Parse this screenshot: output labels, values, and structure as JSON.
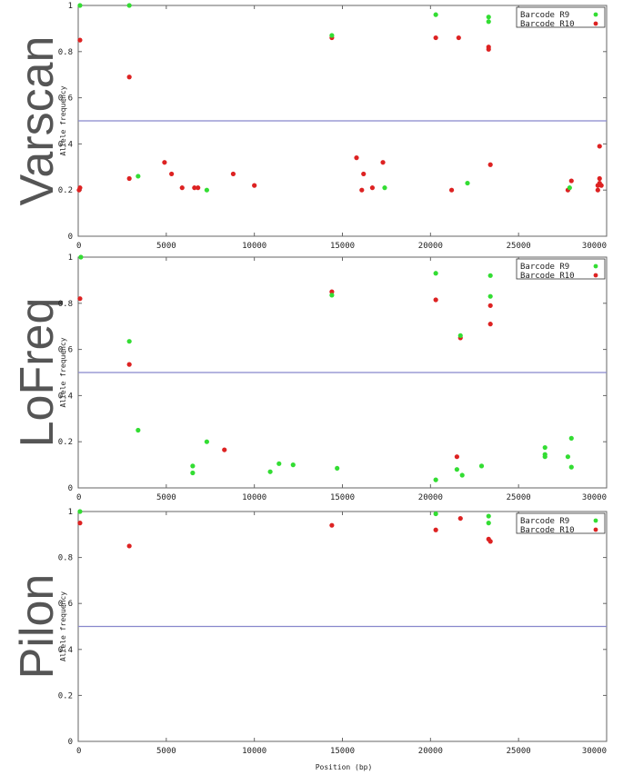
{
  "figure": {
    "x_axis_label": "Position (bp)"
  },
  "colors": {
    "r9": "#33dd33",
    "r10": "#dd2222",
    "threshold": "#8888cc",
    "frame": "#666666"
  },
  "chart_data": [
    {
      "type": "scatter",
      "side_title": "Varscan",
      "ylabel": "Allele frequency",
      "xlabel": "",
      "xlim": [
        0,
        30000
      ],
      "ylim": [
        0,
        1
      ],
      "x_ticks": [
        "0",
        "5000",
        "10000",
        "15000",
        "20000",
        "25000",
        "30000"
      ],
      "y_ticks": [
        "0",
        "0.2",
        "0.4",
        "0.6",
        "0.8",
        "1"
      ],
      "threshold": 0.5,
      "legend_placement": "top-right",
      "series": [
        {
          "name": "Barcode R9",
          "color": "#33dd33",
          "points": [
            [
              100,
              1.0
            ],
            [
              2900,
              1.0
            ],
            [
              3400,
              0.26
            ],
            [
              7300,
              0.2
            ],
            [
              14400,
              0.87
            ],
            [
              17400,
              0.21
            ],
            [
              20300,
              0.96
            ],
            [
              22100,
              0.23
            ],
            [
              23300,
              0.95
            ],
            [
              23300,
              0.93
            ],
            [
              27900,
              0.21
            ]
          ]
        },
        {
          "name": "Barcode R10",
          "color": "#dd2222",
          "points": [
            [
              50,
              0.2
            ],
            [
              100,
              0.21
            ],
            [
              100,
              0.85
            ],
            [
              2900,
              0.69
            ],
            [
              2900,
              0.25
            ],
            [
              4900,
              0.32
            ],
            [
              5300,
              0.27
            ],
            [
              5900,
              0.21
            ],
            [
              6600,
              0.21
            ],
            [
              6800,
              0.21
            ],
            [
              8800,
              0.27
            ],
            [
              10000,
              0.22
            ],
            [
              14400,
              0.86
            ],
            [
              15800,
              0.34
            ],
            [
              16100,
              0.2
            ],
            [
              16200,
              0.27
            ],
            [
              16700,
              0.21
            ],
            [
              17300,
              0.32
            ],
            [
              20300,
              0.86
            ],
            [
              21200,
              0.2
            ],
            [
              21600,
              0.86
            ],
            [
              23300,
              0.82
            ],
            [
              23300,
              0.81
            ],
            [
              23400,
              0.31
            ],
            [
              27800,
              0.2
            ],
            [
              28000,
              0.24
            ],
            [
              29500,
              0.2
            ],
            [
              29500,
              0.22
            ],
            [
              29600,
              0.23
            ],
            [
              29600,
              0.25
            ],
            [
              29700,
              0.22
            ],
            [
              29600,
              0.39
            ]
          ]
        }
      ]
    },
    {
      "type": "scatter",
      "side_title": "LoFreq",
      "ylabel": "Allele frequency",
      "xlabel": "",
      "xlim": [
        0,
        30000
      ],
      "ylim": [
        0,
        1
      ],
      "x_ticks": [
        "0",
        "5000",
        "10000",
        "15000",
        "20000",
        "25000",
        "30000"
      ],
      "y_ticks": [
        "0",
        "0.2",
        "0.4",
        "0.6",
        "0.8",
        "1"
      ],
      "threshold": 0.5,
      "legend_placement": "top-right",
      "series": [
        {
          "name": "Barcode R9",
          "color": "#33dd33",
          "points": [
            [
              150,
              1.0
            ],
            [
              2900,
              0.635
            ],
            [
              3400,
              0.25
            ],
            [
              6500,
              0.095
            ],
            [
              6500,
              0.065
            ],
            [
              7300,
              0.2
            ],
            [
              10900,
              0.07
            ],
            [
              11400,
              0.105
            ],
            [
              12200,
              0.1
            ],
            [
              14400,
              0.835
            ],
            [
              14700,
              0.085
            ],
            [
              20300,
              0.93
            ],
            [
              20300,
              0.035
            ],
            [
              21500,
              0.08
            ],
            [
              21800,
              0.055
            ],
            [
              21700,
              0.66
            ],
            [
              22900,
              0.095
            ],
            [
              23400,
              0.92
            ],
            [
              23400,
              0.83
            ],
            [
              26500,
              0.175
            ],
            [
              26500,
              0.145
            ],
            [
              26500,
              0.135
            ],
            [
              27800,
              0.135
            ],
            [
              28000,
              0.215
            ],
            [
              28000,
              0.09
            ]
          ]
        },
        {
          "name": "Barcode R10",
          "color": "#dd2222",
          "points": [
            [
              100,
              0.82
            ],
            [
              2900,
              0.535
            ],
            [
              8300,
              0.165
            ],
            [
              14400,
              0.85
            ],
            [
              20300,
              0.815
            ],
            [
              21500,
              0.135
            ],
            [
              21700,
              0.65
            ],
            [
              23400,
              0.79
            ],
            [
              23400,
              0.71
            ]
          ]
        }
      ]
    },
    {
      "type": "scatter",
      "side_title": "Pilon",
      "ylabel": "Allele frequency",
      "xlabel": "Position (bp)",
      "xlim": [
        0,
        30000
      ],
      "ylim": [
        0,
        1
      ],
      "x_ticks": [
        "0",
        "5000",
        "10000",
        "15000",
        "20000",
        "25000",
        "30000"
      ],
      "y_ticks": [
        "0",
        "0.2",
        "0.4",
        "0.6",
        "0.8",
        "1"
      ],
      "threshold": 0.5,
      "legend_placement": "top-right",
      "series": [
        {
          "name": "Barcode R9",
          "color": "#33dd33",
          "points": [
            [
              100,
              1.0
            ],
            [
              20300,
              0.99
            ],
            [
              23300,
              0.98
            ],
            [
              23300,
              0.95
            ]
          ]
        },
        {
          "name": "Barcode R10",
          "color": "#dd2222",
          "points": [
            [
              100,
              0.95
            ],
            [
              2900,
              0.85
            ],
            [
              14400,
              0.94
            ],
            [
              20300,
              0.92
            ],
            [
              21700,
              0.97
            ],
            [
              23300,
              0.88
            ],
            [
              23400,
              0.87
            ]
          ]
        }
      ]
    }
  ]
}
